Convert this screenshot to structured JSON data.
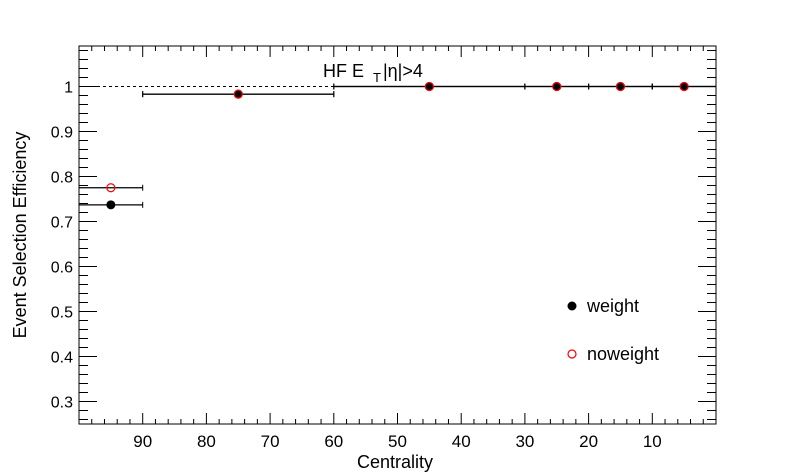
{
  "chart_data": {
    "type": "scatter",
    "title": "HF E",
    "title_sub": "T",
    "title_suffix": " |η|>4",
    "xlabel": "Centrality",
    "ylabel": "Event Selection Efficiency",
    "xlim": [
      100,
      0
    ],
    "ylim": [
      0.25,
      1.09
    ],
    "x_reversed": true,
    "x_ticks": [
      90,
      80,
      70,
      60,
      50,
      40,
      30,
      20,
      10
    ],
    "y_ticks": [
      0.3,
      0.4,
      0.5,
      0.6,
      0.7,
      0.8,
      0.9,
      1
    ],
    "x_tick_labels": [
      "90",
      "80",
      "70",
      "60",
      "50",
      "40",
      "30",
      "20",
      "10"
    ],
    "y_tick_labels": [
      "0.3",
      "0.4",
      "0.5",
      "0.6",
      "0.7",
      "0.8",
      "0.9",
      "1"
    ],
    "reference_line": {
      "y": 1,
      "from": 100,
      "to": 60,
      "style": "dashed"
    },
    "legend_position": "bottom-right",
    "series": [
      {
        "name": "weight",
        "marker": "filled-circle",
        "color": "#000000",
        "x": [
          95,
          75,
          45,
          25,
          15,
          5
        ],
        "xerr": [
          5,
          15,
          15,
          5,
          5,
          5
        ],
        "y": [
          0.737,
          0.983,
          1.0,
          1.0,
          1.0,
          1.0
        ]
      },
      {
        "name": "noweight",
        "marker": "open-circle",
        "color": "#ff0000",
        "x": [
          95,
          75,
          45,
          25,
          15,
          5
        ],
        "xerr": [
          5,
          15,
          15,
          5,
          5,
          5
        ],
        "y": [
          0.775,
          0.983,
          1.0,
          1.0,
          1.0,
          1.0
        ]
      }
    ]
  }
}
